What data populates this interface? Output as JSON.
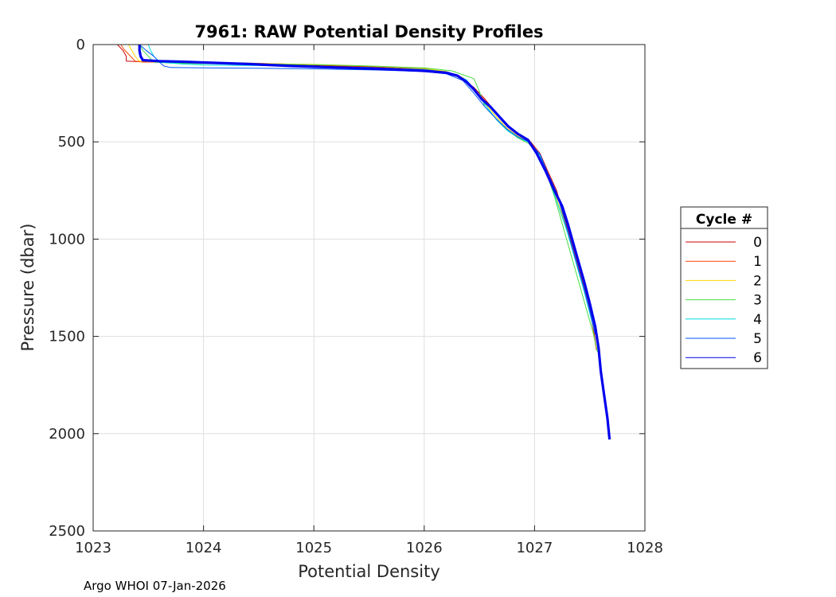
{
  "chart_data": {
    "type": "line",
    "title": "7961: RAW Potential Density Profiles",
    "xlabel": "Potential Density",
    "ylabel": "Pressure (dbar)",
    "xlim": [
      1023,
      1028
    ],
    "ylim": [
      0,
      2500
    ],
    "y_reversed": true,
    "grid": true,
    "x_ticks": [
      "1023",
      "1024",
      "1025",
      "1026",
      "1027",
      "1028"
    ],
    "y_ticks": [
      "0",
      "500",
      "1000",
      "1500",
      "2000",
      "2500"
    ],
    "legend": {
      "title": "Cycle #",
      "placement": "outside-right"
    },
    "series": [
      {
        "name": "0",
        "color": "#cc0000",
        "width": 1,
        "x": [
          1023.22,
          1023.27,
          1023.3,
          1023.3,
          1023.42,
          1024.0,
          1024.5,
          1025.0,
          1025.5,
          1026.0,
          1026.2,
          1026.33,
          1026.45,
          1026.55,
          1026.65,
          1026.75,
          1026.85,
          1026.95,
          1027.05,
          1027.12,
          1027.2,
          1027.25,
          1027.3,
          1027.35,
          1027.4,
          1027.45,
          1027.5,
          1027.53,
          1027.56
        ],
        "y": [
          0,
          30,
          60,
          85,
          88,
          92,
          100,
          108,
          115,
          128,
          145,
          170,
          220,
          280,
          350,
          420,
          460,
          490,
          560,
          650,
          750,
          850,
          950,
          1050,
          1150,
          1250,
          1350,
          1450,
          1560
        ]
      },
      {
        "name": "1",
        "color": "#ff4400",
        "width": 1,
        "x": [
          1023.25,
          1023.28,
          1023.33,
          1023.38,
          1023.45,
          1024.0,
          1024.5,
          1025.0,
          1025.5,
          1026.0,
          1026.18,
          1026.3,
          1026.42,
          1026.52,
          1026.62,
          1026.72,
          1026.82,
          1026.92,
          1027.0,
          1027.1,
          1027.2,
          1027.25,
          1027.3,
          1027.35,
          1027.4,
          1027.45,
          1027.5,
          1027.53,
          1027.56
        ],
        "y": [
          0,
          25,
          55,
          85,
          90,
          92,
          96,
          104,
          112,
          125,
          140,
          165,
          210,
          270,
          330,
          400,
          445,
          480,
          540,
          640,
          760,
          860,
          960,
          1060,
          1160,
          1260,
          1360,
          1460,
          1570
        ]
      },
      {
        "name": "2",
        "color": "#ffd500",
        "width": 1,
        "x": [
          1023.32,
          1023.35,
          1023.38,
          1023.42,
          1023.6,
          1024.0,
          1024.5,
          1025.0,
          1025.5,
          1026.0,
          1026.2,
          1026.35,
          1026.45,
          1026.55,
          1026.65,
          1026.75,
          1026.85,
          1026.95,
          1027.05,
          1027.12,
          1027.18,
          1027.24,
          1027.3,
          1027.35,
          1027.4,
          1027.45,
          1027.5,
          1027.55
        ],
        "y": [
          0,
          30,
          60,
          85,
          90,
          95,
          97,
          102,
          110,
          122,
          138,
          170,
          230,
          300,
          370,
          430,
          470,
          500,
          570,
          660,
          760,
          860,
          960,
          1060,
          1160,
          1260,
          1370,
          1490
        ]
      },
      {
        "name": "3",
        "color": "#44dd44",
        "width": 1,
        "x": [
          1023.42,
          1023.45,
          1023.5,
          1023.55,
          1023.7,
          1024.0,
          1024.5,
          1025.0,
          1025.5,
          1026.0,
          1026.25,
          1026.45,
          1026.5,
          1026.55,
          1026.65,
          1026.75,
          1026.85,
          1026.95,
          1027.05,
          1027.12,
          1027.18,
          1027.23,
          1027.28,
          1027.33,
          1027.38,
          1027.43,
          1027.48,
          1027.53,
          1027.57
        ],
        "y": [
          0,
          30,
          60,
          90,
          95,
          98,
          100,
          103,
          110,
          120,
          135,
          175,
          240,
          320,
          380,
          440,
          480,
          510,
          580,
          680,
          780,
          880,
          980,
          1080,
          1180,
          1280,
          1380,
          1480,
          1580
        ]
      },
      {
        "name": "4",
        "color": "#00dddd",
        "width": 1,
        "x": [
          1023.5,
          1023.52,
          1023.55,
          1023.6,
          1023.8,
          1024.0,
          1024.5,
          1025.0,
          1025.5,
          1026.0,
          1026.22,
          1026.38,
          1026.48,
          1026.58,
          1026.66,
          1026.76,
          1026.86,
          1026.96,
          1027.05,
          1027.12,
          1027.18,
          1027.24,
          1027.3,
          1027.35,
          1027.4,
          1027.45,
          1027.5,
          1027.55
        ],
        "y": [
          0,
          30,
          60,
          90,
          100,
          105,
          108,
          112,
          118,
          128,
          142,
          180,
          250,
          330,
          390,
          445,
          480,
          505,
          570,
          670,
          770,
          870,
          970,
          1070,
          1170,
          1270,
          1380,
          1490
        ]
      },
      {
        "name": "5",
        "color": "#0055ff",
        "width": 1,
        "x": [
          1023.42,
          1023.48,
          1023.55,
          1023.6,
          1023.64,
          1023.7,
          1024.0,
          1024.5,
          1025.0,
          1025.5,
          1026.0,
          1026.2,
          1026.35,
          1026.45,
          1026.55,
          1026.65,
          1026.75,
          1026.85,
          1026.95,
          1027.05,
          1027.12,
          1027.2,
          1027.25,
          1027.3,
          1027.35,
          1027.4,
          1027.45,
          1027.5,
          1027.55
        ],
        "y": [
          0,
          30,
          60,
          90,
          110,
          118,
          120,
          122,
          125,
          130,
          138,
          150,
          185,
          250,
          320,
          380,
          435,
          475,
          500,
          565,
          660,
          760,
          860,
          960,
          1060,
          1160,
          1260,
          1370,
          1490
        ]
      },
      {
        "name": "6",
        "color": "#0000ee",
        "width": 3.2,
        "x": [
          1023.42,
          1023.42,
          1023.43,
          1023.45,
          1023.6,
          1023.8,
          1024.0,
          1024.4,
          1024.8,
          1025.2,
          1025.6,
          1026.0,
          1026.2,
          1026.3,
          1026.38,
          1026.45,
          1026.52,
          1026.6,
          1026.68,
          1026.76,
          1026.85,
          1026.94,
          1027.02,
          1027.1,
          1027.18,
          1027.25,
          1027.3,
          1027.35,
          1027.4,
          1027.45,
          1027.5,
          1027.55,
          1027.58,
          1027.6,
          1027.63,
          1027.66,
          1027.68
        ],
        "y": [
          0,
          30,
          60,
          80,
          85,
          88,
          92,
          100,
          110,
          118,
          125,
          135,
          145,
          160,
          190,
          230,
          280,
          320,
          370,
          420,
          460,
          490,
          560,
          650,
          750,
          830,
          920,
          1020,
          1120,
          1220,
          1330,
          1450,
          1560,
          1680,
          1800,
          1920,
          2030
        ]
      }
    ]
  },
  "footer": "Argo WHOI 07-Jan-2026"
}
